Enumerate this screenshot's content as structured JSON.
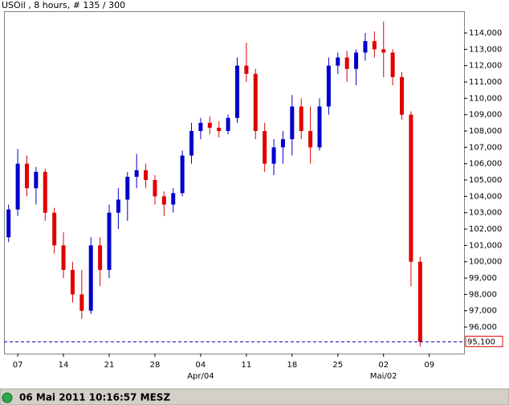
{
  "chart_data": {
    "type": "candlestick",
    "title": "USOil , 8 hours, # 135 / 300",
    "status": "06 Mai 2011 10:16:57 MESZ",
    "up_color": "#0000cc",
    "down_color": "#e00000",
    "open": [
      101500,
      103200,
      106000,
      104500,
      105500,
      103000,
      101000,
      99500,
      98000,
      97000,
      101000,
      99500,
      103000,
      103800,
      105200,
      105600,
      105000,
      104000,
      103500,
      104200,
      106500,
      108000,
      108500,
      108200,
      108000,
      108800,
      112000,
      111500,
      108000,
      106000,
      107000,
      107500,
      109500,
      108000,
      107000,
      109500,
      112000,
      112500,
      111800,
      112800,
      113500,
      113000,
      112800,
      111300,
      109000,
      100000
    ],
    "high": [
      103500,
      106900,
      106500,
      105800,
      105700,
      103300,
      101800,
      100000,
      99500,
      101500,
      101500,
      103500,
      104500,
      105500,
      106600,
      106000,
      105300,
      104300,
      104500,
      106800,
      108500,
      108800,
      108900,
      108600,
      109000,
      112500,
      113400,
      111800,
      108500,
      107500,
      108000,
      110200,
      110000,
      109500,
      110000,
      112500,
      112800,
      112900,
      113000,
      114000,
      114100,
      114700,
      113000,
      111600,
      109200,
      100300
    ],
    "low": [
      101200,
      102800,
      104000,
      103500,
      102500,
      100500,
      99000,
      97500,
      96500,
      96800,
      98500,
      99000,
      102000,
      102500,
      104500,
      104500,
      103500,
      102800,
      103000,
      104000,
      106000,
      107500,
      107800,
      107600,
      107800,
      108500,
      111000,
      107500,
      105500,
      105300,
      106000,
      106500,
      107500,
      106000,
      106800,
      109000,
      111500,
      111000,
      110800,
      112300,
      112500,
      111300,
      110800,
      108700,
      98500,
      94800
    ],
    "close": [
      103200,
      106000,
      104500,
      105500,
      103000,
      101000,
      99500,
      98000,
      97000,
      101000,
      99500,
      103000,
      103800,
      105200,
      105600,
      105000,
      104000,
      103500,
      104200,
      106500,
      108000,
      108500,
      108200,
      108000,
      108800,
      112000,
      111500,
      108000,
      106000,
      107000,
      107500,
      109500,
      108000,
      107000,
      109500,
      112000,
      112500,
      111800,
      112800,
      113500,
      113000,
      112800,
      111300,
      109000,
      100000,
      95100
    ],
    "xlim": [
      -0.5,
      49.8
    ],
    "xticks": [
      {
        "value": 1,
        "label": "07"
      },
      {
        "value": 6,
        "label": "14"
      },
      {
        "value": 11,
        "label": "21"
      },
      {
        "value": 16,
        "label": "28"
      },
      {
        "value": 21,
        "label": "04"
      },
      {
        "value": 26,
        "label": "11"
      },
      {
        "value": 31,
        "label": "18"
      },
      {
        "value": 36,
        "label": "25"
      },
      {
        "value": 41,
        "label": "02"
      },
      {
        "value": 46,
        "label": "09"
      }
    ],
    "month_ticks": [
      {
        "value": 21,
        "label": "Apr/04"
      },
      {
        "value": 41,
        "label": "Mai/02"
      }
    ],
    "ylim": [
      94380,
      115280
    ],
    "yticks": [
      {
        "value": 96000,
        "label": "96,000"
      },
      {
        "value": 97000,
        "label": "97,000"
      },
      {
        "value": 98000,
        "label": "98,000"
      },
      {
        "value": 99000,
        "label": "99,000"
      },
      {
        "value": 100000,
        "label": "100,000"
      },
      {
        "value": 101000,
        "label": "101,000"
      },
      {
        "value": 102000,
        "label": "102,000"
      },
      {
        "value": 103000,
        "label": "103,000"
      },
      {
        "value": 104000,
        "label": "104,000"
      },
      {
        "value": 105000,
        "label": "105,000"
      },
      {
        "value": 106000,
        "label": "106,000"
      },
      {
        "value": 107000,
        "label": "107,000"
      },
      {
        "value": 108000,
        "label": "108,000"
      },
      {
        "value": 109000,
        "label": "109,000"
      },
      {
        "value": 110000,
        "label": "110,000"
      },
      {
        "value": 111000,
        "label": "111,000"
      },
      {
        "value": 112000,
        "label": "112,000"
      },
      {
        "value": 113000,
        "label": "113,000"
      },
      {
        "value": 114000,
        "label": "114,000"
      }
    ],
    "current_price": {
      "value": 95100,
      "label": "95,100"
    }
  }
}
